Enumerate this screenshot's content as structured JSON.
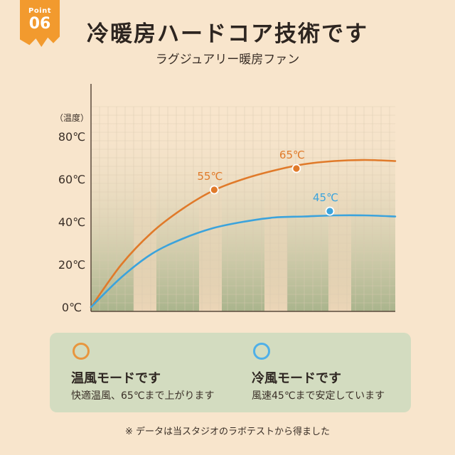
{
  "badge": {
    "label": "Point",
    "number": "06"
  },
  "header": {
    "title": "冷暖房ハードコア技術です",
    "subtitle": "ラグジュアリー暖房ファン"
  },
  "colors": {
    "warm": "#e07a2a",
    "cool": "#3ba3dc",
    "panel": "#d3dcc0",
    "background": "#f8e5cc"
  },
  "chart_data": {
    "type": "line",
    "y_unit_label": "（温度）",
    "yticks": [
      "0℃",
      "20℃",
      "40℃",
      "60℃",
      "80℃"
    ],
    "ylim": [
      0,
      80
    ],
    "grid": true,
    "series": [
      {
        "name": "温風モード",
        "color": "#e07a2a",
        "values": [
          [
            0,
            0
          ],
          [
            0.1,
            20
          ],
          [
            0.2,
            35
          ],
          [
            0.3,
            46
          ],
          [
            0.4,
            54.5
          ],
          [
            0.5,
            60
          ],
          [
            0.6,
            64
          ],
          [
            0.7,
            67
          ],
          [
            0.8,
            68.5
          ],
          [
            0.9,
            69
          ],
          [
            1.0,
            68.5
          ]
        ],
        "labeled_point": {
          "x": 0.405,
          "y": 55,
          "label": "55℃"
        }
      },
      {
        "name": "冷風モード",
        "color": "#3ba3dc",
        "values": [
          [
            0,
            0
          ],
          [
            0.1,
            14
          ],
          [
            0.2,
            25
          ],
          [
            0.3,
            32
          ],
          [
            0.4,
            37
          ],
          [
            0.5,
            40
          ],
          [
            0.6,
            42
          ],
          [
            0.7,
            42.5
          ],
          [
            0.8,
            43
          ],
          [
            0.9,
            43
          ],
          [
            1.0,
            42.5
          ]
        ],
        "labeled_point": {
          "x": 0.785,
          "y": 45,
          "label": "45℃"
        }
      },
      {
        "name": "温風モード-upper",
        "color": "#e07a2a",
        "values": [],
        "labeled_point": {
          "x": 0.675,
          "y": 65,
          "label": "65℃"
        }
      }
    ]
  },
  "legend": {
    "warm": {
      "title": "温風モードです",
      "desc": "快適温風、65℃まで上がります"
    },
    "cool": {
      "title": "冷風モードです",
      "desc": "風速45℃まで安定しています"
    }
  },
  "footnote": "※ データは当スタジオのラボテストから得ました"
}
